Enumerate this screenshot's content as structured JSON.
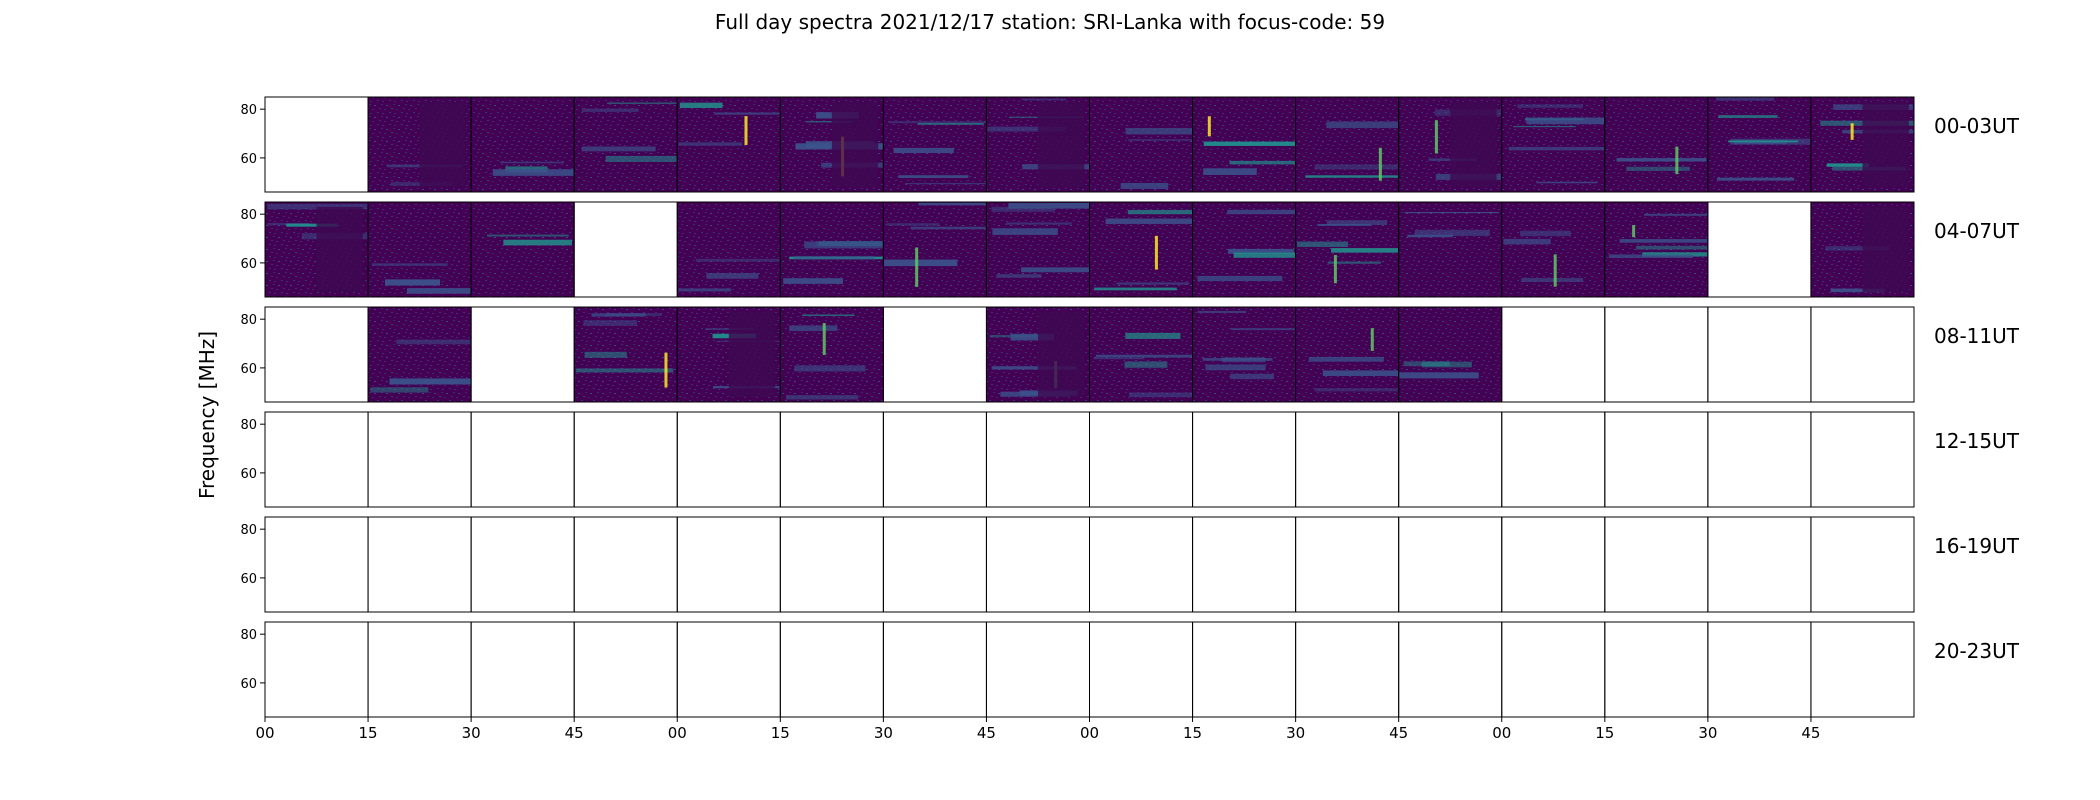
{
  "chart_data": {
    "type": "heatmap",
    "title": "Full day spectra 2021/12/17 station: SRI-Lanka with focus-code: 59",
    "ylabel": "Frequency [MHz]",
    "xlabel": "",
    "y_ticks": [
      60,
      80
    ],
    "ylim": [
      46,
      85
    ],
    "x_ticks": [
      "00",
      "15",
      "30",
      "45",
      "00",
      "15",
      "30",
      "45",
      "00",
      "15",
      "30",
      "45",
      "00",
      "15",
      "30",
      "45"
    ],
    "panels_per_row": 16,
    "colormap": [
      "#440154",
      "#3b528b",
      "#21918c",
      "#5ec962",
      "#fde725"
    ],
    "rows": [
      {
        "label": "00-03UT",
        "data_available": [
          false,
          true,
          true,
          true,
          true,
          true,
          true,
          true,
          true,
          true,
          true,
          true,
          true,
          true,
          true,
          true
        ]
      },
      {
        "label": "04-07UT",
        "data_available": [
          true,
          true,
          true,
          false,
          true,
          true,
          true,
          true,
          true,
          true,
          true,
          true,
          true,
          true,
          false,
          true
        ]
      },
      {
        "label": "08-11UT",
        "data_available": [
          false,
          true,
          false,
          true,
          true,
          true,
          false,
          true,
          true,
          true,
          true,
          true,
          false,
          false,
          false,
          false
        ]
      },
      {
        "label": "12-15UT",
        "data_available": [
          false,
          false,
          false,
          false,
          false,
          false,
          false,
          false,
          false,
          false,
          false,
          false,
          false,
          false,
          false,
          false
        ]
      },
      {
        "label": "16-19UT",
        "data_available": [
          false,
          false,
          false,
          false,
          false,
          false,
          false,
          false,
          false,
          false,
          false,
          false,
          false,
          false,
          false,
          false
        ]
      },
      {
        "label": "20-23UT",
        "data_available": [
          false,
          false,
          false,
          false,
          false,
          false,
          false,
          false,
          false,
          false,
          false,
          false,
          false,
          false,
          false,
          false
        ]
      }
    ]
  }
}
